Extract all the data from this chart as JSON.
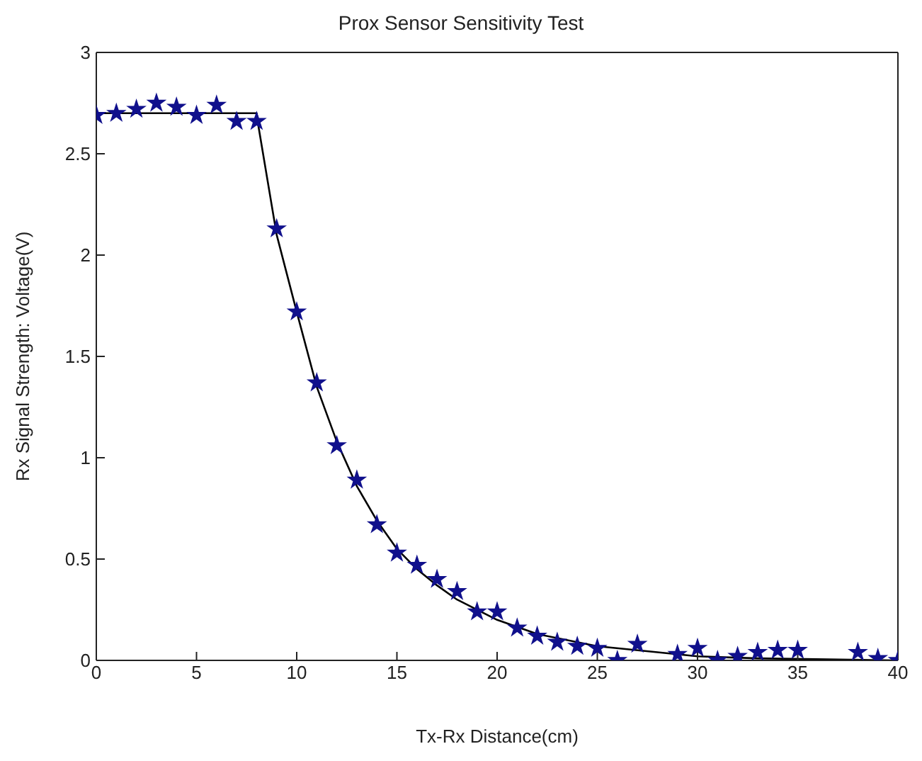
{
  "chart_data": {
    "type": "scatter",
    "title": "Prox Sensor Sensitivity Test",
    "xlabel": "Tx-Rx Distance(cm)",
    "ylabel": "Rx Signal Strength: Voltage(V)",
    "xlim": [
      0,
      40
    ],
    "ylim": [
      0,
      3
    ],
    "xticks": [
      0,
      5,
      10,
      15,
      20,
      25,
      30,
      35,
      40
    ],
    "yticks": [
      0,
      0.5,
      1,
      1.5,
      2,
      2.5,
      3
    ],
    "grid": false,
    "legend": false,
    "series": [
      {
        "marker": "star",
        "color": "#10108c",
        "x": [
          0,
          1,
          2,
          3,
          4,
          5,
          6,
          7,
          8,
          9,
          10,
          11,
          12,
          13,
          14,
          15,
          16,
          17,
          18,
          19,
          20,
          21,
          22,
          23,
          24,
          25,
          26,
          27,
          29,
          30,
          31,
          32,
          33,
          34,
          35,
          38,
          39,
          40
        ],
        "values": [
          2.69,
          2.7,
          2.72,
          2.75,
          2.73,
          2.69,
          2.74,
          2.66,
          2.66,
          2.13,
          1.72,
          1.37,
          1.06,
          0.89,
          0.67,
          0.53,
          0.47,
          0.4,
          0.34,
          0.24,
          0.24,
          0.16,
          0.12,
          0.09,
          0.07,
          0.06,
          0.0,
          0.08,
          0.03,
          0.06,
          0.0,
          0.02,
          0.04,
          0.05,
          0.05,
          0.04,
          0.01,
          0.0
        ]
      },
      {
        "type": "line",
        "marker": "none",
        "line_style": "solid",
        "color": "#000000",
        "x": [
          0,
          8,
          8.1,
          9,
          10,
          11,
          12,
          13,
          14,
          15,
          16,
          17,
          18,
          20,
          22,
          25,
          28,
          30,
          33,
          40
        ],
        "values": [
          2.7,
          2.7,
          2.63,
          2.1,
          1.72,
          1.35,
          1.08,
          0.86,
          0.69,
          0.55,
          0.45,
          0.37,
          0.3,
          0.2,
          0.13,
          0.07,
          0.04,
          0.02,
          0.01,
          0.0
        ]
      }
    ]
  }
}
